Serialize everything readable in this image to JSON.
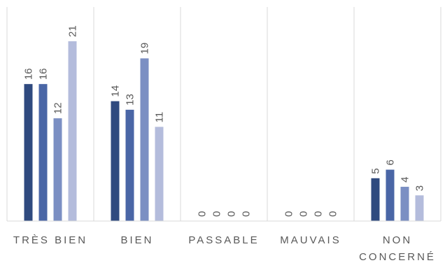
{
  "chart_data": {
    "type": "bar",
    "categories": [
      "TRÈS BIEN",
      "BIEN",
      "PASSABLE",
      "MAUVAIS",
      "NON CONCERNÉ"
    ],
    "category_label_lines": [
      [
        "TRÈS BIEN"
      ],
      [
        "BIEN"
      ],
      [
        "PASSABLE"
      ],
      [
        "MAUVAIS"
      ],
      [
        "NON",
        "CONCERNÉ"
      ]
    ],
    "series": [
      {
        "values": [
          16,
          14,
          0,
          0,
          5
        ],
        "color": "#2f4a7f"
      },
      {
        "values": [
          16,
          13,
          0,
          0,
          6
        ],
        "color": "#4a66a6"
      },
      {
        "values": [
          12,
          19,
          0,
          0,
          4
        ],
        "color": "#7b8fc3"
      },
      {
        "values": [
          21,
          11,
          0,
          0,
          3
        ],
        "color": "#b4bcdc"
      }
    ],
    "title": "",
    "xlabel": "",
    "ylabel": "",
    "ylim": [
      0,
      25
    ],
    "grid": "vertical-separators",
    "legend": "none",
    "data_labels": "rotated"
  }
}
